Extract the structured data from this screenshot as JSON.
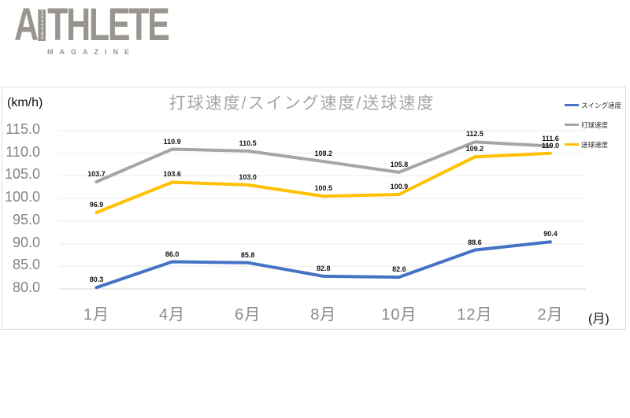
{
  "logo": {
    "brand_first": "A",
    "vertical_text": "HIROSHIMA",
    "brand_rest": "THLETE",
    "sub": "MAGAZINE"
  },
  "chart_data": {
    "type": "line",
    "title": "打球速度/スイング速度/送球速度",
    "ylabel": "(km/h)",
    "xlabel": "(月)",
    "categories": [
      "1月",
      "4月",
      "6月",
      "8月",
      "10月",
      "12月",
      "2月"
    ],
    "series": [
      {
        "name": "スイング速度",
        "color": "#4472C4",
        "values": [
          80.3,
          86.0,
          85.8,
          82.8,
          82.6,
          88.6,
          90.4
        ]
      },
      {
        "name": "打球速度",
        "color": "#A5A5A5",
        "values": [
          103.7,
          110.9,
          110.5,
          108.2,
          105.8,
          112.5,
          111.6
        ]
      },
      {
        "name": "送球速度",
        "color": "#FFC000",
        "values": [
          96.9,
          103.6,
          103.0,
          100.5,
          100.9,
          109.2,
          110.0
        ]
      }
    ],
    "ylim": [
      80,
      115
    ],
    "ytick_step": 5,
    "grid": true,
    "legend_position": "top-right",
    "style": {
      "grid_color": "#ebebeb",
      "axis_color": "#d6d6d6",
      "line_width": 4
    }
  }
}
